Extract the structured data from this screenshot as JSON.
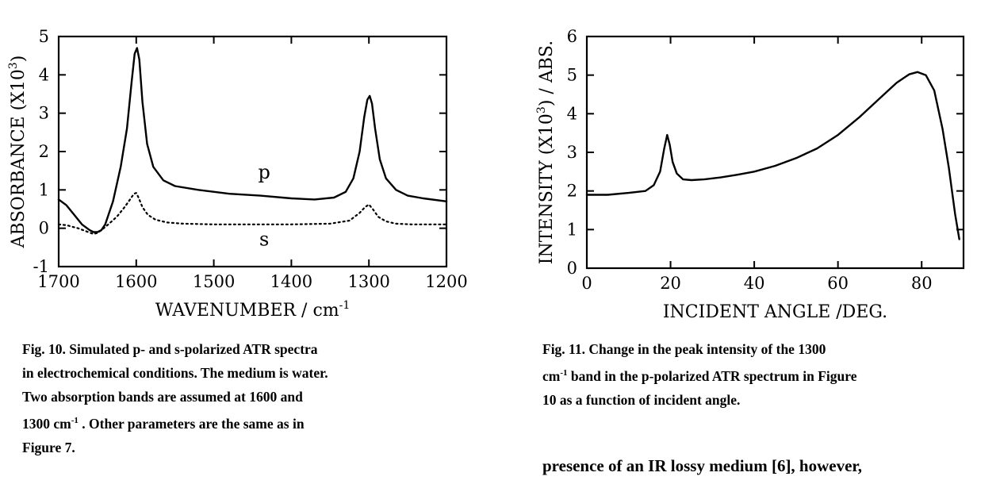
{
  "chart_data": [
    {
      "type": "line",
      "title": "",
      "xlabel": "WAVENUMBER / cm",
      "xlabel_sup": "-1",
      "ylabel": "ABSORBANCE (X10",
      "ylabel_sup": "3",
      "ylabel_end": ")",
      "xlim": [
        1700,
        1200
      ],
      "ylim": [
        -1,
        5
      ],
      "xticks": [
        "1700",
        "1600",
        "1500",
        "1400",
        "1300",
        "1200"
      ],
      "yticks": [
        "-1",
        "0",
        "1",
        "2",
        "3",
        "4",
        "5"
      ],
      "grid": false,
      "series": [
        {
          "name": "p",
          "style": "solid",
          "x": [
            1700,
            1690,
            1680,
            1670,
            1660,
            1655,
            1650,
            1645,
            1640,
            1630,
            1620,
            1612,
            1606,
            1602,
            1599,
            1596,
            1592,
            1586,
            1578,
            1565,
            1550,
            1520,
            1480,
            1440,
            1400,
            1370,
            1345,
            1330,
            1320,
            1312,
            1306,
            1302,
            1299,
            1296,
            1292,
            1286,
            1278,
            1265,
            1250,
            1230,
            1200
          ],
          "y": [
            0.75,
            0.6,
            0.35,
            0.1,
            -0.05,
            -0.1,
            -0.1,
            -0.05,
            0.1,
            0.7,
            1.6,
            2.6,
            3.8,
            4.55,
            4.7,
            4.4,
            3.3,
            2.2,
            1.6,
            1.25,
            1.1,
            1.0,
            0.9,
            0.85,
            0.78,
            0.75,
            0.8,
            0.95,
            1.3,
            2.0,
            2.9,
            3.35,
            3.45,
            3.25,
            2.6,
            1.8,
            1.3,
            1.0,
            0.85,
            0.78,
            0.7
          ]
        },
        {
          "name": "s",
          "style": "dotted",
          "x": [
            1700,
            1690,
            1675,
            1662,
            1655,
            1650,
            1645,
            1636,
            1625,
            1615,
            1608,
            1603,
            1600,
            1597,
            1592,
            1585,
            1575,
            1560,
            1540,
            1500,
            1450,
            1400,
            1350,
            1325,
            1312,
            1305,
            1300,
            1295,
            1288,
            1278,
            1265,
            1245,
            1200
          ],
          "y": [
            0.1,
            0.08,
            0.0,
            -0.1,
            -0.15,
            -0.12,
            -0.05,
            0.1,
            0.3,
            0.55,
            0.75,
            0.9,
            0.92,
            0.8,
            0.55,
            0.35,
            0.22,
            0.15,
            0.12,
            0.1,
            0.1,
            0.1,
            0.12,
            0.2,
            0.4,
            0.55,
            0.62,
            0.5,
            0.3,
            0.18,
            0.12,
            0.1,
            0.1
          ]
        }
      ],
      "annotations": [
        {
          "text": "p",
          "x": 1435,
          "y": 1.3
        },
        {
          "text": "s",
          "x": 1435,
          "y": -0.45
        }
      ]
    },
    {
      "type": "line",
      "title": "",
      "xlabel": "INCIDENT ANGLE /DEG.",
      "ylabel": "INTENSITY (X10",
      "ylabel_sup": "3",
      "ylabel_end": ") / ABS.",
      "xlim": [
        0,
        90
      ],
      "ylim": [
        0,
        6
      ],
      "xticks": [
        "0",
        "20",
        "40",
        "60",
        "80"
      ],
      "yticks": [
        "0",
        "1",
        "2",
        "3",
        "4",
        "5",
        "6"
      ],
      "grid": false,
      "series": [
        {
          "style": "solid",
          "x": [
            0,
            5,
            10,
            14,
            16,
            17.5,
            18.5,
            19.2,
            19.8,
            20.5,
            21.5,
            23,
            25,
            28,
            32,
            36,
            40,
            45,
            50,
            55,
            60,
            65,
            70,
            74,
            77,
            79,
            81,
            83,
            85,
            86.5,
            88,
            89
          ],
          "y": [
            1.9,
            1.9,
            1.95,
            2.0,
            2.15,
            2.5,
            3.1,
            3.45,
            3.2,
            2.75,
            2.45,
            2.3,
            2.28,
            2.3,
            2.35,
            2.42,
            2.5,
            2.65,
            2.85,
            3.1,
            3.45,
            3.9,
            4.4,
            4.8,
            5.02,
            5.08,
            5.0,
            4.6,
            3.6,
            2.6,
            1.4,
            0.75
          ]
        }
      ]
    }
  ],
  "captions": {
    "fig10_lines": [
      "Fig. 10.  Simulated p- and s-polarized ATR  spectra",
      "in electrochemical conditions.  The medium is water.",
      "Two  absorption  bands  are  assumed  at  1600  and",
      "1300 cm",
      "-1",
      " .   Other parameters are the same as in",
      "Figure 7."
    ],
    "fig11_lines": [
      "Fig. 11.  Change in the peak intensity of the 1300",
      "cm",
      "-1",
      " band in the p-polarized ATR spectrum in Figure",
      "10 as a function of incident angle."
    ],
    "trailing_text": "presence of an IR lossy medium [6], however,"
  }
}
